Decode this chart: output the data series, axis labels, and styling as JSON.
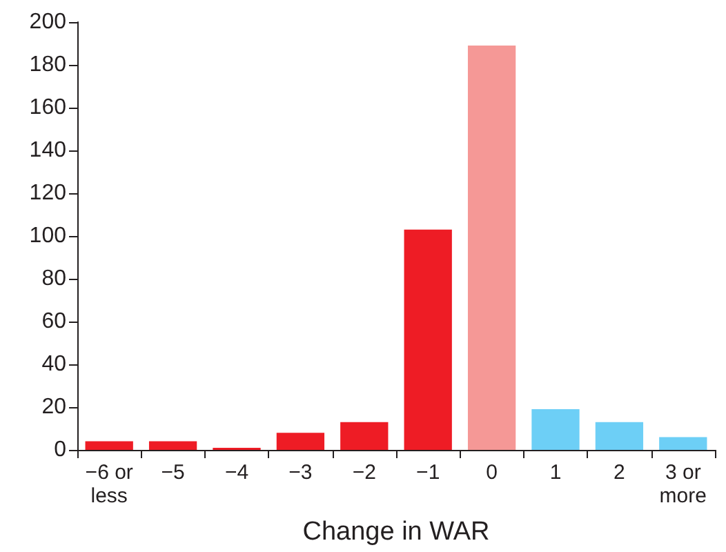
{
  "chart_data": {
    "type": "bar",
    "xlabel": "Change in WAR",
    "categories": [
      "−6 or\nless",
      "−5",
      "−4",
      "−3",
      "−2",
      "−1",
      "0",
      "1",
      "2",
      "3 or\nmore"
    ],
    "values": [
      4,
      4,
      1,
      8,
      13,
      103,
      189,
      19,
      13,
      6
    ],
    "colors": [
      "#ee1c25",
      "#ee1c25",
      "#ee1c25",
      "#ee1c25",
      "#ee1c25",
      "#ee1c25",
      "#f59896",
      "#6dcff6",
      "#6dcff6",
      "#6dcff6"
    ],
    "ylim": [
      0,
      200
    ],
    "yticks": [
      0,
      20,
      40,
      60,
      80,
      100,
      120,
      140,
      160,
      180,
      200
    ],
    "grid": false
  }
}
